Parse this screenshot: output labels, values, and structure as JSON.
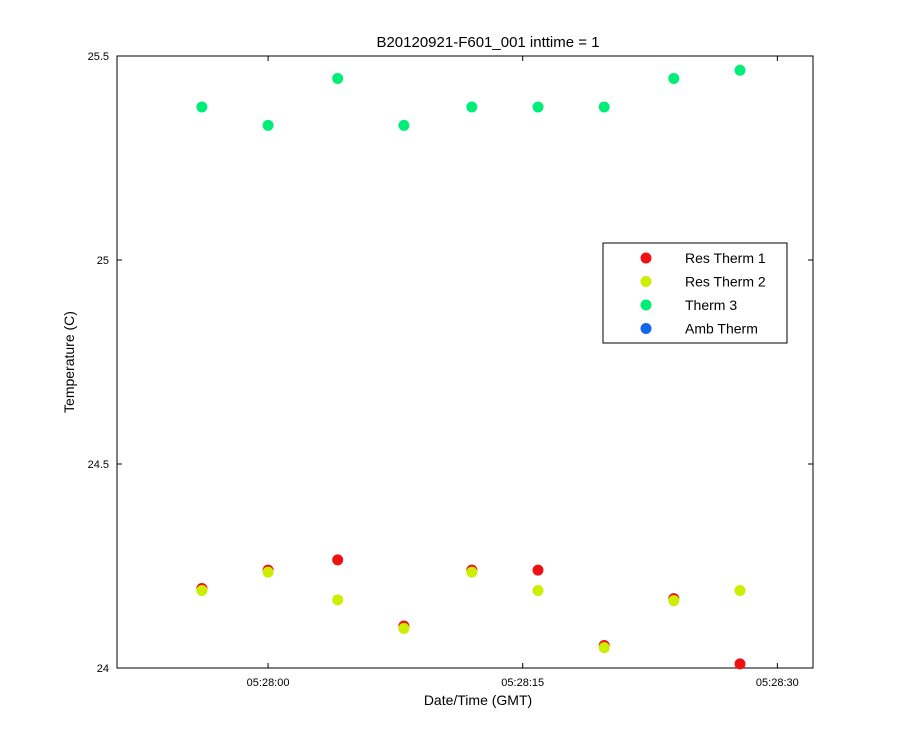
{
  "chart_data": {
    "type": "scatter",
    "title": "B20120921-F601_001 inttime = 1",
    "xlabel": "Date/Time (GMT)",
    "ylabel": "Temperature (C)",
    "xlim": [
      "05:27:51.1",
      "05:28:32.1"
    ],
    "ylim": [
      24,
      25.5
    ],
    "x_ticks": [
      "05:28:00",
      "05:28:15",
      "05:28:30"
    ],
    "y_ticks": [
      "24",
      "24.5",
      "25",
      "25.5"
    ],
    "grid": false,
    "legend_position": "right",
    "x": [
      "05:27:56.1",
      "05:28:00.0",
      "05:28:04.1",
      "05:28:08.0",
      "05:28:12.0",
      "05:28:15.9",
      "05:28:19.8",
      "05:28:23.9",
      "05:28:27.8"
    ],
    "series": [
      {
        "name": "Res Therm 1",
        "color": "#ee1111",
        "values": [
          24.195,
          24.24,
          24.265,
          24.103,
          24.24,
          24.24,
          24.055,
          24.17,
          24.01
        ]
      },
      {
        "name": "Res Therm 2",
        "color": "#ccee00",
        "values": [
          24.19,
          24.235,
          24.167,
          24.097,
          24.235,
          24.19,
          24.05,
          24.165,
          24.19
        ]
      },
      {
        "name": "Therm 3",
        "color": "#00ee77",
        "values": [
          25.375,
          25.33,
          25.445,
          25.33,
          25.375,
          25.375,
          25.375,
          25.445,
          25.465
        ]
      },
      {
        "name": "Amb Therm",
        "color": "#1166ee",
        "values": []
      }
    ]
  }
}
